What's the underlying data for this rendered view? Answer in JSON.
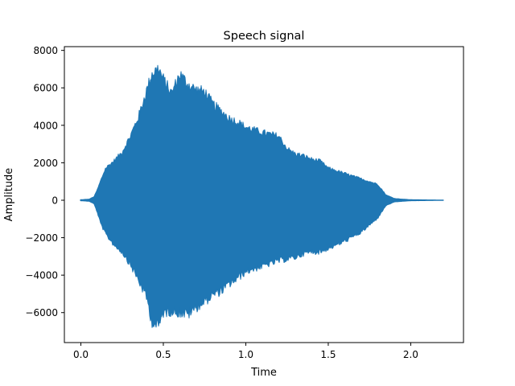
{
  "chart_data": {
    "type": "line",
    "title": "Speech signal",
    "xlabel": "Time",
    "ylabel": "Amplitude",
    "xlim": [
      -0.1,
      2.32
    ],
    "ylim": [
      -7600,
      8200
    ],
    "xticks": [
      0.0,
      0.5,
      1.0,
      1.5,
      2.0
    ],
    "xtick_labels": [
      "0.0",
      "0.5",
      "1.0",
      "1.5",
      "2.0"
    ],
    "yticks": [
      -6000,
      -4000,
      -2000,
      0,
      2000,
      4000,
      6000,
      8000
    ],
    "ytick_labels": [
      "−6000",
      "−4000",
      "−2000",
      "0",
      "2000",
      "4000",
      "6000",
      "8000"
    ],
    "grid": false,
    "series": [
      {
        "color": "#1f77b4",
        "x_range": [
          0.0,
          2.2
        ],
        "upper_envelope": {
          "t": [
            0.0,
            0.05,
            0.08,
            0.1,
            0.12,
            0.15,
            0.2,
            0.25,
            0.3,
            0.35,
            0.4,
            0.43,
            0.47,
            0.5,
            0.55,
            0.6,
            0.65,
            0.7,
            0.75,
            0.8,
            0.85,
            0.9,
            0.95,
            1.0,
            1.1,
            1.2,
            1.25,
            1.3,
            1.35,
            1.4,
            1.45,
            1.5,
            1.6,
            1.7,
            1.8,
            1.85,
            1.9,
            1.95,
            2.0,
            2.1,
            2.2
          ],
          "a": [
            30,
            60,
            200,
            600,
            1100,
            1800,
            2200,
            2700,
            3600,
            4700,
            6200,
            7100,
            7400,
            6800,
            6000,
            7100,
            6500,
            6200,
            6100,
            5400,
            5000,
            4600,
            4400,
            4100,
            3800,
            3600,
            2900,
            2600,
            2500,
            2300,
            2200,
            1800,
            1500,
            1200,
            900,
            300,
            100,
            60,
            30,
            20,
            10
          ]
        },
        "lower_envelope": {
          "t": [
            0.0,
            0.05,
            0.08,
            0.1,
            0.12,
            0.15,
            0.2,
            0.25,
            0.3,
            0.35,
            0.4,
            0.43,
            0.47,
            0.5,
            0.55,
            0.6,
            0.65,
            0.7,
            0.75,
            0.8,
            0.85,
            0.9,
            0.95,
            1.0,
            1.1,
            1.2,
            1.25,
            1.3,
            1.35,
            1.4,
            1.45,
            1.5,
            1.6,
            1.7,
            1.8,
            1.85,
            1.9,
            1.95,
            2.0,
            2.1,
            2.2
          ],
          "a": [
            -30,
            -60,
            -200,
            -700,
            -1300,
            -1900,
            -2500,
            -2900,
            -3600,
            -4500,
            -5500,
            -6800,
            -7100,
            -6300,
            -6200,
            -6300,
            -6400,
            -6000,
            -5700,
            -5300,
            -5100,
            -4700,
            -4400,
            -4000,
            -3700,
            -3400,
            -3300,
            -3200,
            -3000,
            -2900,
            -2900,
            -2700,
            -2300,
            -1800,
            -1000,
            -300,
            -100,
            -60,
            -30,
            -20,
            -10
          ]
        }
      }
    ]
  }
}
